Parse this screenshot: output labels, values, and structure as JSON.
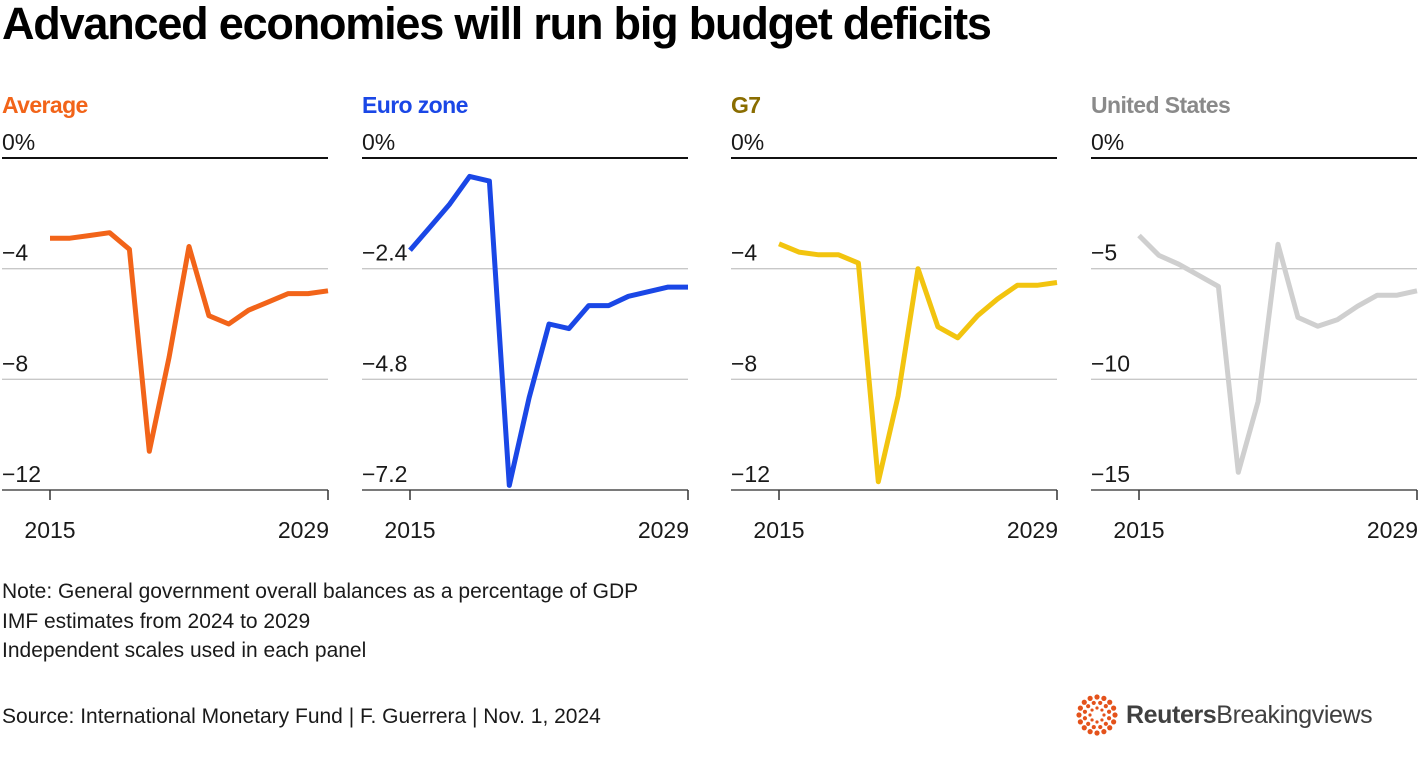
{
  "title": "Advanced economies will run big budget deficits",
  "notes": [
    "Note: General government overall balances as a percentage of GDP",
    "IMF estimates from 2024 to 2029",
    "Independent scales used in each panel"
  ],
  "source": "Source: International Monetary Fund | F. Guerrera | Nov. 1, 2024",
  "logo": {
    "brand": "Reuters",
    "product": "Breakingviews",
    "accent_color": "#e4521b"
  },
  "chart_data": [
    {
      "type": "line",
      "title": "Average",
      "color": "#f26419",
      "title_color": "#f26419",
      "x": [
        2015,
        2016,
        2017,
        2018,
        2019,
        2020,
        2021,
        2022,
        2023,
        2024,
        2025,
        2026,
        2027,
        2028,
        2029
      ],
      "values": [
        -2.9,
        -2.9,
        -2.8,
        -2.7,
        -3.3,
        -10.6,
        -7.2,
        -3.2,
        -5.7,
        -6.0,
        -5.5,
        -5.2,
        -4.9,
        -4.9,
        -4.8
      ],
      "ylim": [
        -12,
        0
      ],
      "yticks": [
        0,
        -4,
        -8,
        -12
      ],
      "ytick_labels": [
        "0%",
        "−4",
        "−8",
        "−12"
      ],
      "xtick_labels": [
        "2015",
        "2029"
      ]
    },
    {
      "type": "line",
      "title": "Euro zone",
      "color": "#1a47e6",
      "title_color": "#1a47e6",
      "x": [
        2015,
        2016,
        2017,
        2018,
        2019,
        2020,
        2021,
        2022,
        2023,
        2024,
        2025,
        2026,
        2027,
        2028,
        2029
      ],
      "values": [
        -2.0,
        -1.5,
        -1.0,
        -0.4,
        -0.5,
        -7.1,
        -5.2,
        -3.6,
        -3.7,
        -3.2,
        -3.2,
        -3.0,
        -2.9,
        -2.8,
        -2.8
      ],
      "ylim": [
        -7.2,
        0
      ],
      "yticks": [
        0,
        -2.4,
        -4.8,
        -7.2
      ],
      "ytick_labels": [
        "0%",
        "−2.4",
        "−4.8",
        "−7.2"
      ],
      "xtick_labels": [
        "2015",
        "2029"
      ]
    },
    {
      "type": "line",
      "title": "G7",
      "color": "#f2c40f",
      "title_color": "#8a6d00",
      "x": [
        2015,
        2016,
        2017,
        2018,
        2019,
        2020,
        2021,
        2022,
        2023,
        2024,
        2025,
        2026,
        2027,
        2028,
        2029
      ],
      "values": [
        -3.1,
        -3.4,
        -3.5,
        -3.5,
        -3.8,
        -11.7,
        -8.6,
        -4.0,
        -6.1,
        -6.5,
        -5.7,
        -5.1,
        -4.6,
        -4.6,
        -4.5
      ],
      "ylim": [
        -12,
        0
      ],
      "yticks": [
        0,
        -4,
        -8,
        -12
      ],
      "ytick_labels": [
        "0%",
        "−4",
        "−8",
        "−12"
      ],
      "xtick_labels": [
        "2015",
        "2029"
      ]
    },
    {
      "type": "line",
      "title": "United States",
      "color": "#cfcfcf",
      "title_color": "#8a8a8a",
      "x": [
        2015,
        2016,
        2017,
        2018,
        2019,
        2020,
        2021,
        2022,
        2023,
        2024,
        2025,
        2026,
        2027,
        2028,
        2029
      ],
      "values": [
        -3.5,
        -4.4,
        -4.8,
        -5.3,
        -5.8,
        -14.2,
        -11.0,
        -3.9,
        -7.2,
        -7.6,
        -7.3,
        -6.7,
        -6.2,
        -6.2,
        -6.0
      ],
      "ylim": [
        -15,
        0
      ],
      "yticks": [
        0,
        -5,
        -10,
        -15
      ],
      "ytick_labels": [
        "0%",
        "−5",
        "−10",
        "−15"
      ],
      "xtick_labels": [
        "2015",
        "2029"
      ]
    }
  ]
}
